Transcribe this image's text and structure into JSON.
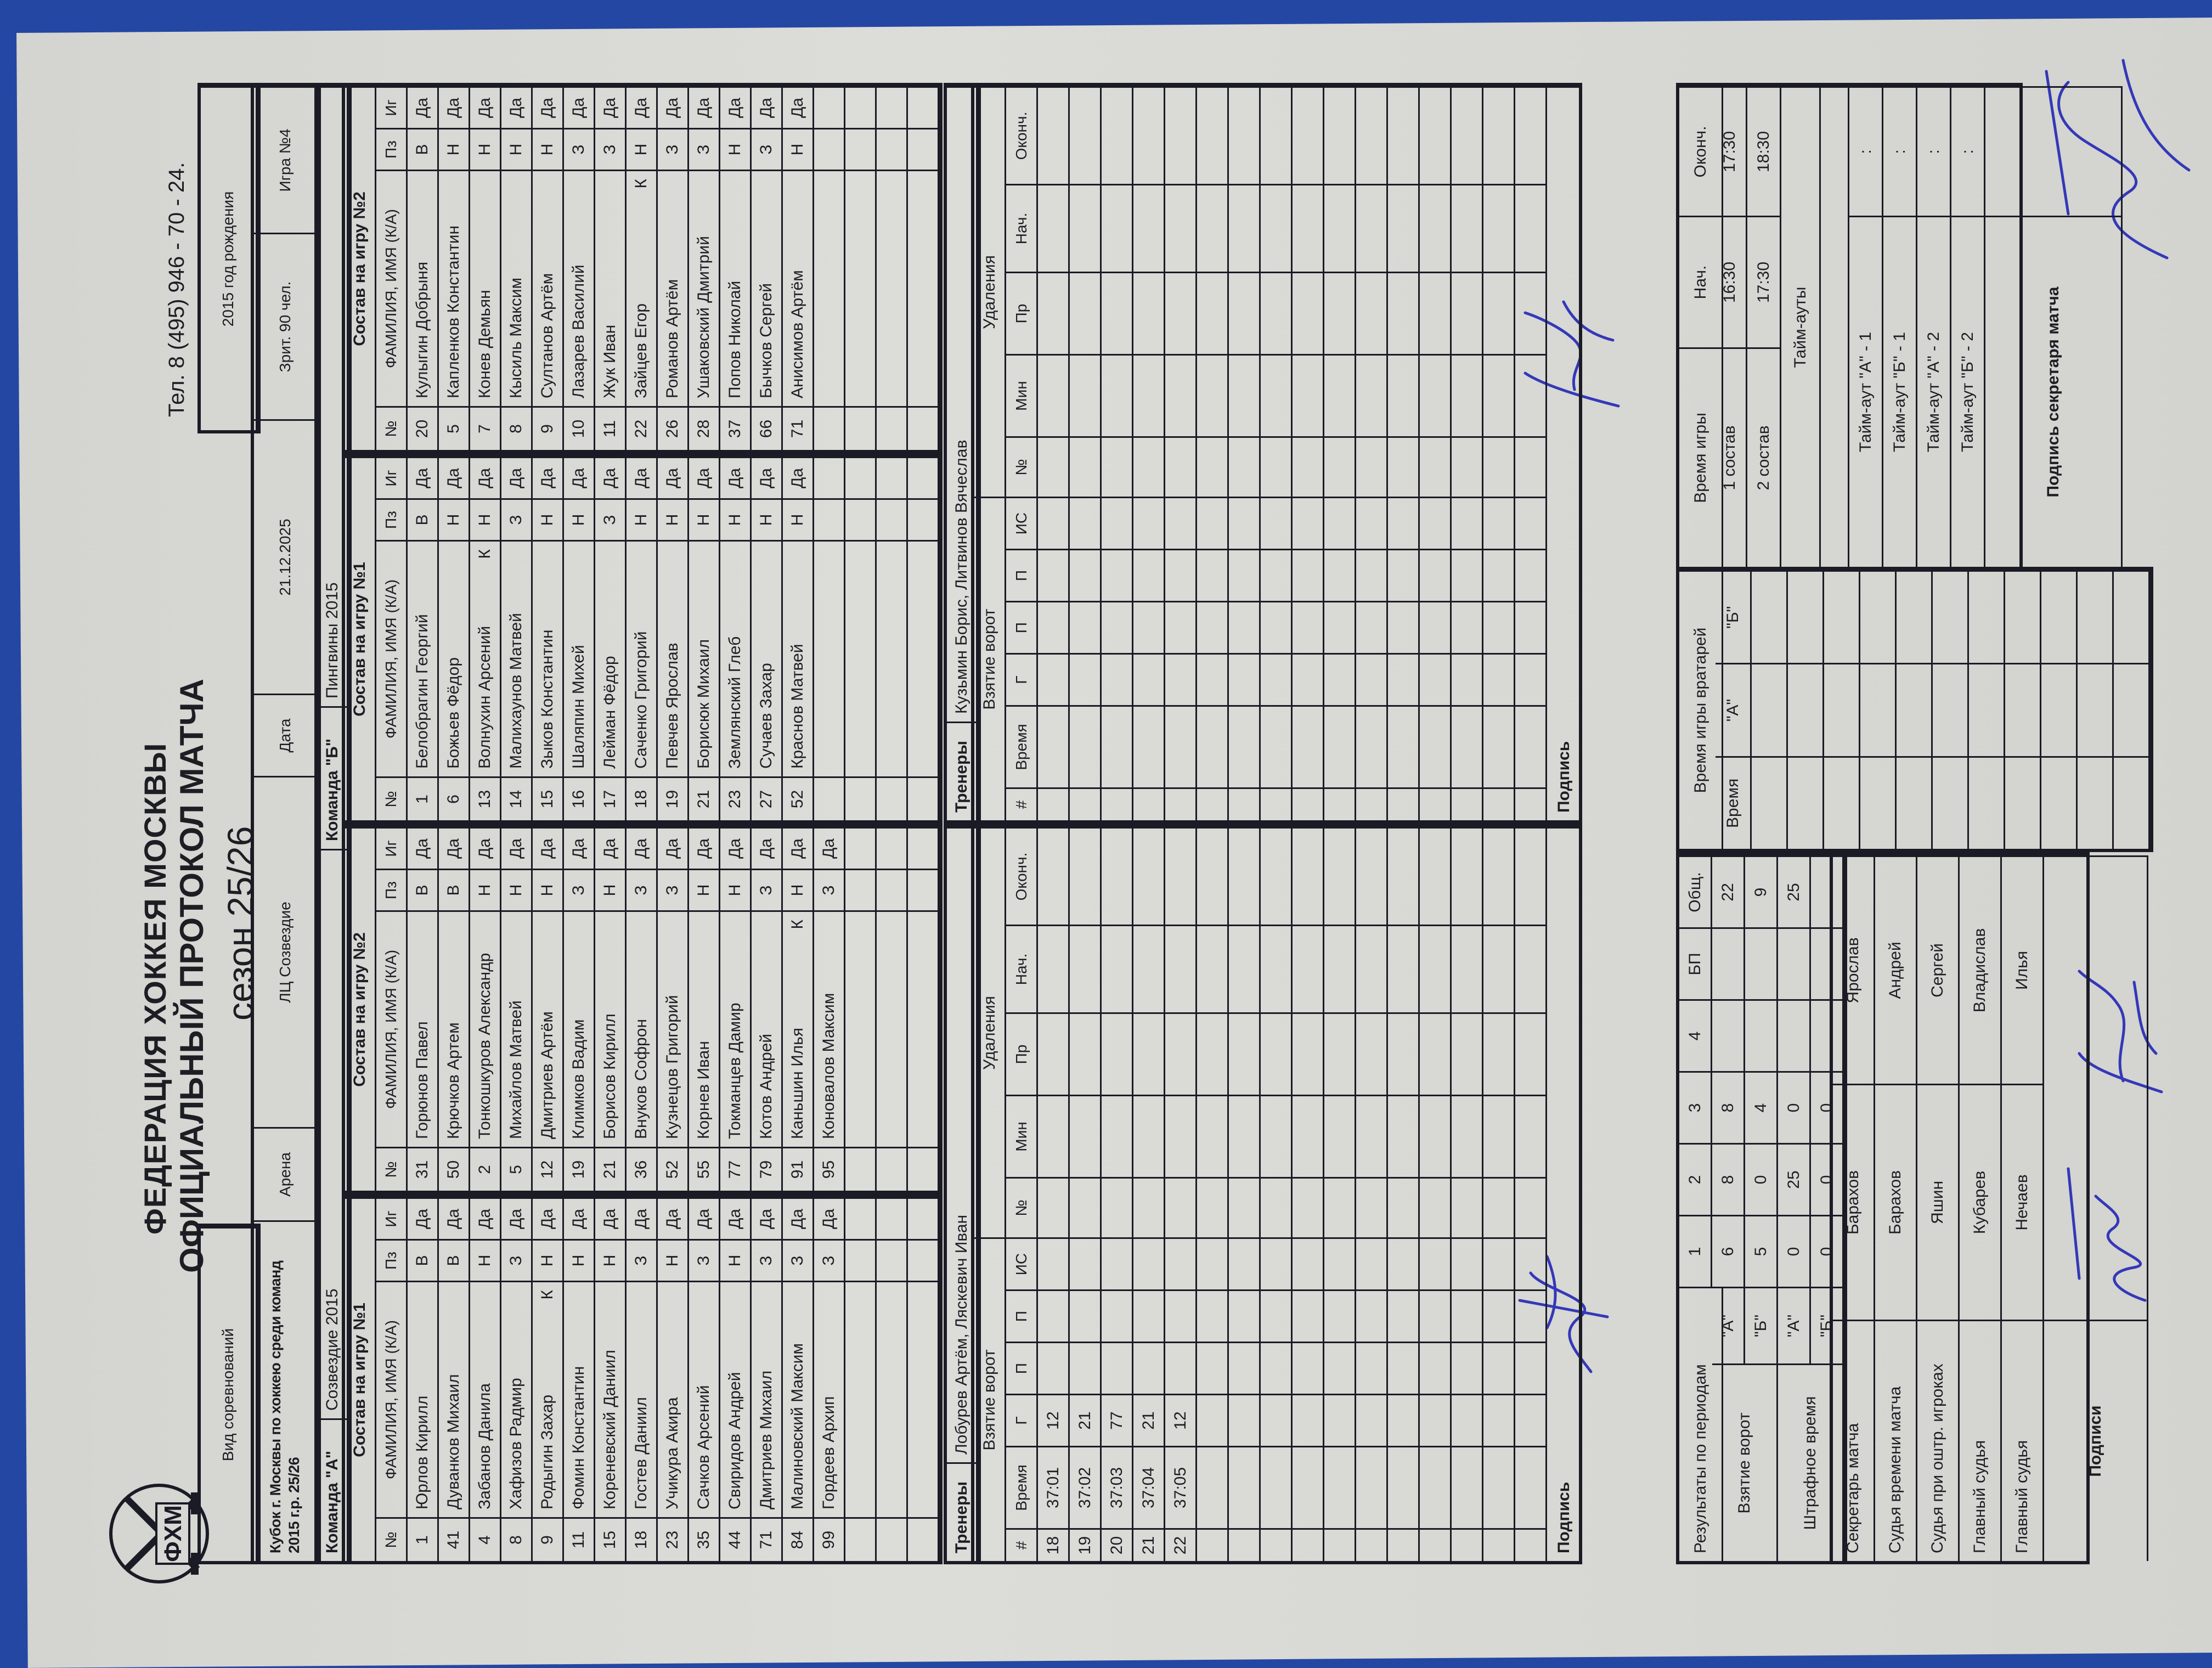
{
  "header": {
    "logo_text": "ФХМ",
    "federation": "ФЕДЕРАЦИЯ ХОККЕЯ МОСКВЫ",
    "title": "ОФИЦИАЛЬНЫЙ ПРОТОКОЛ МАТЧА",
    "season": "сезон 25/26",
    "phone": "Тел. 8 (495) 946 - 70 - 24."
  },
  "info": {
    "competition_label": "Вид соревнований",
    "competition": "Кубок г. Москвы по хоккею среди команд 2015 г.р. 25/26",
    "arena_label": "Арена",
    "arena": "ЛЦ Созвездие",
    "date_label": "Дата",
    "date": "21.12.2025",
    "spectators": "Зрит. 90 чел.",
    "birth_year": "2015 год рождения",
    "game_no": "Игра №4"
  },
  "roster_columns": [
    "№",
    "ФАМИЛИЯ, ИМЯ (К/А)",
    "Пз",
    "Иг"
  ],
  "teams": [
    {
      "label": "Команда \"А\"",
      "name": "Созвездие 2015",
      "coaches": "Лобурев Артём, Ляскевич Иван",
      "rosters": [
        {
          "title": "Состав на игру №1",
          "players": [
            [
              "1",
              "Юрлов Кирилл",
              "",
              "В",
              "Да"
            ],
            [
              "41",
              "Дуванков Михаил",
              "",
              "В",
              "Да"
            ],
            [
              "4",
              "Забанов Данила",
              "",
              "Н",
              "Да"
            ],
            [
              "8",
              "Хафизов Радмир",
              "",
              "З",
              "Да"
            ],
            [
              "9",
              "Родыгин Захар",
              "К",
              "Н",
              "Да"
            ],
            [
              "11",
              "Фомин Константин",
              "",
              "Н",
              "Да"
            ],
            [
              "15",
              "Кореневский Даниил",
              "",
              "Н",
              "Да"
            ],
            [
              "18",
              "Гостев Даниил",
              "",
              "З",
              "Да"
            ],
            [
              "23",
              "Учикура Акира",
              "",
              "Н",
              "Да"
            ],
            [
              "35",
              "Сачков Арсений",
              "",
              "З",
              "Да"
            ],
            [
              "44",
              "Свиридов Андрей",
              "",
              "Н",
              "Да"
            ],
            [
              "71",
              "Дмитриев Михаил",
              "",
              "З",
              "Да"
            ],
            [
              "84",
              "Малиновский Максим",
              "",
              "З",
              "Да"
            ],
            [
              "99",
              "Гордеев Архип",
              "",
              "З",
              "Да"
            ]
          ]
        },
        {
          "title": "Состав на игру №2",
          "players": [
            [
              "31",
              "Горюнов Павел",
              "",
              "В",
              "Да"
            ],
            [
              "50",
              "Крючков Артем",
              "",
              "В",
              "Да"
            ],
            [
              "2",
              "Тонкошкуров Александр",
              "",
              "Н",
              "Да"
            ],
            [
              "5",
              "Михайлов Матвей",
              "",
              "Н",
              "Да"
            ],
            [
              "12",
              "Дмитриев Артём",
              "",
              "Н",
              "Да"
            ],
            [
              "19",
              "Климков Вадим",
              "",
              "З",
              "Да"
            ],
            [
              "21",
              "Борисов Кирилл",
              "",
              "Н",
              "Да"
            ],
            [
              "36",
              "Внуков Софрон",
              "",
              "З",
              "Да"
            ],
            [
              "52",
              "Кузнецов Григорий",
              "",
              "З",
              "Да"
            ],
            [
              "55",
              "Корнев Иван",
              "",
              "Н",
              "Да"
            ],
            [
              "77",
              "Токманцев Дамир",
              "",
              "Н",
              "Да"
            ],
            [
              "79",
              "Котов Андрей",
              "",
              "З",
              "Да"
            ],
            [
              "91",
              "Каньшин Илья",
              "К",
              "Н",
              "Да"
            ],
            [
              "95",
              "Коновалов Максим",
              "",
              "З",
              "Да"
            ]
          ]
        }
      ],
      "goals": [
        [
          "18",
          "37:01",
          "12",
          "",
          "",
          ""
        ],
        [
          "19",
          "37:02",
          "21",
          "",
          "",
          ""
        ],
        [
          "20",
          "37:03",
          "77",
          "",
          "",
          ""
        ],
        [
          "21",
          "37:04",
          "21",
          "",
          "",
          ""
        ],
        [
          "22",
          "37:05",
          "12",
          "",
          "",
          ""
        ]
      ]
    },
    {
      "label": "Команда \"Б\"",
      "name": "Пингвины 2015",
      "coaches": "Кузьмин Борис, Литвинов Вячеслав",
      "rosters": [
        {
          "title": "Состав на игру №1",
          "players": [
            [
              "1",
              "Белобрагин Георгий",
              "",
              "В",
              "Да"
            ],
            [
              "6",
              "Божьев Фёдор",
              "",
              "Н",
              "Да"
            ],
            [
              "13",
              "Волнухин Арсений",
              "К",
              "Н",
              "Да"
            ],
            [
              "14",
              "Малихаунов Матвей",
              "",
              "З",
              "Да"
            ],
            [
              "15",
              "Зыков Константин",
              "",
              "Н",
              "Да"
            ],
            [
              "16",
              "Шаляпин Михей",
              "",
              "Н",
              "Да"
            ],
            [
              "17",
              "Лейман Фёдор",
              "",
              "З",
              "Да"
            ],
            [
              "18",
              "Саченко Григорий",
              "",
              "Н",
              "Да"
            ],
            [
              "19",
              "Певчев Ярослав",
              "",
              "Н",
              "Да"
            ],
            [
              "21",
              "Борисюк Михаил",
              "",
              "Н",
              "Да"
            ],
            [
              "23",
              "Землянский Глеб",
              "",
              "Н",
              "Да"
            ],
            [
              "27",
              "Сучаев Захар",
              "",
              "Н",
              "Да"
            ],
            [
              "52",
              "Краснов Матвей",
              "",
              "Н",
              "Да"
            ]
          ]
        },
        {
          "title": "Состав на игру №2",
          "players": [
            [
              "20",
              "Кулыгин Добрыня",
              "",
              "В",
              "Да"
            ],
            [
              "5",
              "Капленков Константин",
              "",
              "Н",
              "Да"
            ],
            [
              "7",
              "Конев Демьян",
              "",
              "Н",
              "Да"
            ],
            [
              "8",
              "Кысиль Максим",
              "",
              "Н",
              "Да"
            ],
            [
              "9",
              "Султанов Артём",
              "",
              "Н",
              "Да"
            ],
            [
              "10",
              "Лазарев Василий",
              "",
              "З",
              "Да"
            ],
            [
              "11",
              "Жук Иван",
              "",
              "З",
              "Да"
            ],
            [
              "22",
              "Зайцев Егор",
              "К",
              "Н",
              "Да"
            ],
            [
              "26",
              "Романов Артём",
              "",
              "З",
              "Да"
            ],
            [
              "28",
              "Ушаковский Дмитрий",
              "",
              "З",
              "Да"
            ],
            [
              "37",
              "Попов Николай",
              "",
              "Н",
              "Да"
            ],
            [
              "66",
              "Бычков Сергей",
              "",
              "З",
              "Да"
            ],
            [
              "71",
              "Анисимов Артём",
              "",
              "Н",
              "Да"
            ]
          ]
        }
      ],
      "goals": []
    }
  ],
  "events": {
    "coaches_label": "Тренеры",
    "goals_label": "Взятие ворот",
    "penalties_label": "Удаления",
    "goal_columns": [
      "#",
      "Время",
      "Г",
      "П",
      "П",
      "ИС"
    ],
    "penalty_columns": [
      "№",
      "Мин",
      "Пр",
      "Нач.",
      "Оконч."
    ],
    "signature_label": "Подпись"
  },
  "results": {
    "title": "Результаты по периодам",
    "periods": [
      "1",
      "2",
      "3",
      "4",
      "БП",
      "Общ."
    ],
    "goals_label": "Взятие ворот",
    "penalty_label": "Штрафное время",
    "goals": [
      {
        "team": "\"А\"",
        "values": [
          "6",
          "8",
          "8",
          "",
          "",
          "22"
        ]
      },
      {
        "team": "\"Б\"",
        "values": [
          "5",
          "0",
          "4",
          "",
          "",
          "9"
        ]
      }
    ],
    "penalties": [
      {
        "team": "\"А\"",
        "values": [
          "0",
          "25",
          "0",
          "",
          "",
          "25"
        ]
      },
      {
        "team": "\"Б\"",
        "values": [
          "0",
          "0",
          "0",
          "",
          "",
          ""
        ]
      }
    ]
  },
  "officials": [
    {
      "role": "Секретарь матча",
      "surname": "Барахов",
      "name": "Ярослав"
    },
    {
      "role": "Судья времени матча",
      "surname": "Барахов",
      "name": "Андрей"
    },
    {
      "role": "Судья при оштр. игроках",
      "surname": "Яшин",
      "name": "Сергей"
    },
    {
      "role": "Главный судья",
      "surname": "Кубарев",
      "name": "Владислав"
    },
    {
      "role": "Главный судья",
      "surname": "Нечаев",
      "name": "Илья"
    }
  ],
  "signatures_label": "Подписи",
  "goalies": {
    "title": "Время игры вратарей",
    "columns": [
      "Время",
      "\"А\"",
      "\"Б\""
    ]
  },
  "game_time": {
    "columns": [
      "Время игры",
      "Нач.",
      "Оконч."
    ],
    "rows": [
      [
        "1 состав",
        "16:30",
        "17:30"
      ],
      [
        "2 состав",
        "17:30",
        "18:30"
      ]
    ],
    "timeouts_label": "Тайм-ауты",
    "timeouts": [
      {
        "label": "Тайм-аут \"А\" - 1",
        "value": ":"
      },
      {
        "label": "Тайм-аут \"Б\" - 1",
        "value": ":"
      },
      {
        "label": "Тайм-аут \"А\" - 2",
        "value": ":"
      },
      {
        "label": "Тайм-аут \"Б\" - 2",
        "value": ":"
      }
    ],
    "secretary_signature_label": "Подпись секретаря матча"
  },
  "colors": {
    "ink": "#1b1b26",
    "paper": "#d8d8d4",
    "signature": "#3338b8",
    "background": "#2447a3"
  }
}
